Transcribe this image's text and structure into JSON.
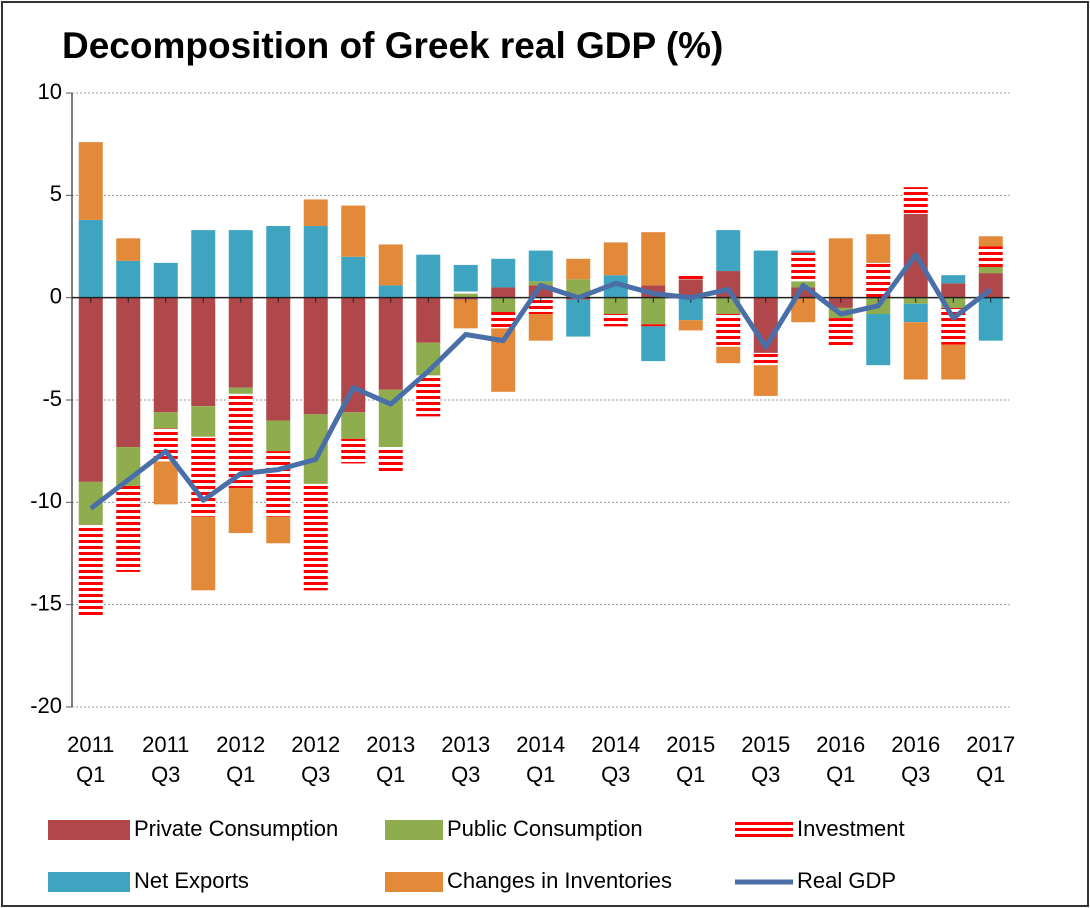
{
  "chart_data": {
    "type": "bar",
    "stacked": true,
    "title": "Decomposition of Greek real GDP (%)",
    "categories": [
      "2011\nQ1",
      null,
      "2011\nQ3",
      null,
      "2012\nQ1",
      null,
      "2012\nQ3",
      null,
      "2013\nQ1",
      null,
      "2013\nQ3",
      null,
      "2014\nQ1",
      null,
      "2014\nQ3",
      null,
      "2015\nQ1",
      null,
      "2015\nQ3",
      null,
      "2016\nQ1",
      null,
      "2016\nQ3",
      null,
      "2017\nQ1"
    ],
    "series": [
      {
        "name": "Private Consumption",
        "color": "#b0474a",
        "values": [
          -9,
          -7.3,
          -5.6,
          -5.3,
          -4.4,
          -6.0,
          -5.7,
          -5.6,
          -4.5,
          -2.2,
          -0.1,
          0.5,
          0.6,
          -0.1,
          0.0,
          0.6,
          0.9,
          1.3,
          -2.7,
          0.5,
          -0.5,
          0.0,
          4.1,
          0.7,
          1.2
        ]
      },
      {
        "name": "Public Consumption",
        "color": "#8fad4f",
        "values": [
          -2.1,
          -1.9,
          -0.8,
          -1.5,
          -0.3,
          -1.5,
          -3.4,
          -1.3,
          -2.8,
          -1.6,
          0.2,
          -0.7,
          0.2,
          0.9,
          -0.8,
          -1.3,
          0.0,
          -0.8,
          0.0,
          0.3,
          -0.5,
          -0.8,
          -0.3,
          -0.5,
          0.3
        ]
      },
      {
        "name": "Investment",
        "color": "#ff0000",
        "pattern": "stripes",
        "values": [
          -4.5,
          -4.2,
          -1.6,
          -3.9,
          -4.6,
          -3.2,
          -5.2,
          -1.2,
          -1.2,
          -2.0,
          0.1,
          -0.8,
          -0.8,
          0.0,
          -0.6,
          -0.1,
          0.3,
          -1.6,
          -0.6,
          1.4,
          -1.4,
          1.7,
          1.3,
          -1.8,
          1.0
        ]
      },
      {
        "name": "Net Exports",
        "color": "#3fa4bf",
        "values": [
          3.8,
          1.8,
          1.7,
          3.3,
          3.3,
          3.5,
          3.5,
          2.0,
          0.6,
          2.1,
          1.3,
          1.4,
          1.5,
          -1.8,
          1.1,
          -1.7,
          -1.1,
          2.0,
          2.3,
          0.1,
          0.0,
          -2.5,
          -0.9,
          0.4,
          -2.1
        ]
      },
      {
        "name": "Changes in Inventories",
        "color": "#e3893a",
        "values": [
          3.8,
          1.1,
          -2.1,
          -3.6,
          -2.2,
          -1.3,
          1.3,
          2.5,
          2.0,
          0.0,
          -1.4,
          -3.1,
          -1.3,
          1.0,
          1.6,
          2.6,
          -0.5,
          -0.8,
          -1.5,
          -1.2,
          2.9,
          1.4,
          -2.8,
          -1.7,
          0.5
        ]
      },
      {
        "name": "Real GDP",
        "type": "line",
        "color": "#4a6fa8",
        "values": [
          -10.3,
          -8.9,
          -7.5,
          -9.9,
          -8.6,
          -8.4,
          -7.9,
          -4.4,
          -5.2,
          -3.6,
          -1.8,
          -2.1,
          0.6,
          0.0,
          0.7,
          0.2,
          0.0,
          0.4,
          -2.4,
          0.6,
          -0.8,
          -0.4,
          2.1,
          -1.0,
          0.4
        ]
      }
    ],
    "ylim": [
      -20,
      10
    ],
    "yticks": [
      -20,
      -15,
      -10,
      -5,
      0,
      5,
      10
    ],
    "grid": true,
    "legend": "bottom"
  }
}
